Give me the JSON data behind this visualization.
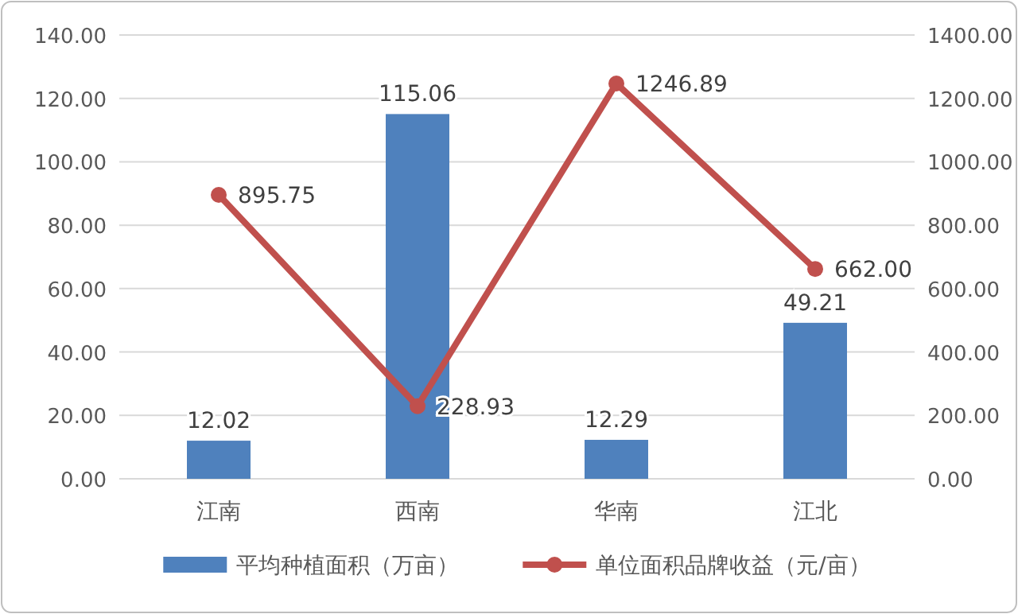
{
  "chart_data": {
    "type": "bar",
    "categories": [
      "江南",
      "西南",
      "华南",
      "江北"
    ],
    "series": [
      {
        "name": "平均种植面积（万亩）",
        "color": "#4f81bd",
        "values": [
          12.02,
          115.06,
          12.29,
          49.21
        ],
        "value_labels": [
          "12.02",
          "115.06",
          "12.29",
          "49.21"
        ]
      },
      {
        "name": "单位面积品牌收益（元/亩）",
        "type": "line",
        "axis": "y2",
        "color": "#c0504d",
        "marker": "circle",
        "values": [
          895.75,
          228.93,
          1246.89,
          662.0
        ],
        "value_labels": [
          "895.75",
          "228.93",
          "1246.89",
          "662.00"
        ]
      }
    ],
    "ylim": [
      0,
      140
    ],
    "yticks": [
      {
        "value": 0,
        "label": "0.00"
      },
      {
        "value": 20,
        "label": "20.00"
      },
      {
        "value": 40,
        "label": "40.00"
      },
      {
        "value": 60,
        "label": "60.00"
      },
      {
        "value": 80,
        "label": "80.00"
      },
      {
        "value": 100,
        "label": "100.00"
      },
      {
        "value": 120,
        "label": "120.00"
      },
      {
        "value": 140,
        "label": "140.00"
      }
    ],
    "y2lim": [
      0,
      1400
    ],
    "y2ticks": [
      {
        "value": 0,
        "label": "0.00"
      },
      {
        "value": 200,
        "label": "200.00"
      },
      {
        "value": 400,
        "label": "400.00"
      },
      {
        "value": 600,
        "label": "600.00"
      },
      {
        "value": 800,
        "label": "800.00"
      },
      {
        "value": 1000,
        "label": "1000.00"
      },
      {
        "value": 1200,
        "label": "1200.00"
      },
      {
        "value": 1400,
        "label": "1400.00"
      }
    ],
    "grid": "y",
    "legend": "bottom"
  }
}
